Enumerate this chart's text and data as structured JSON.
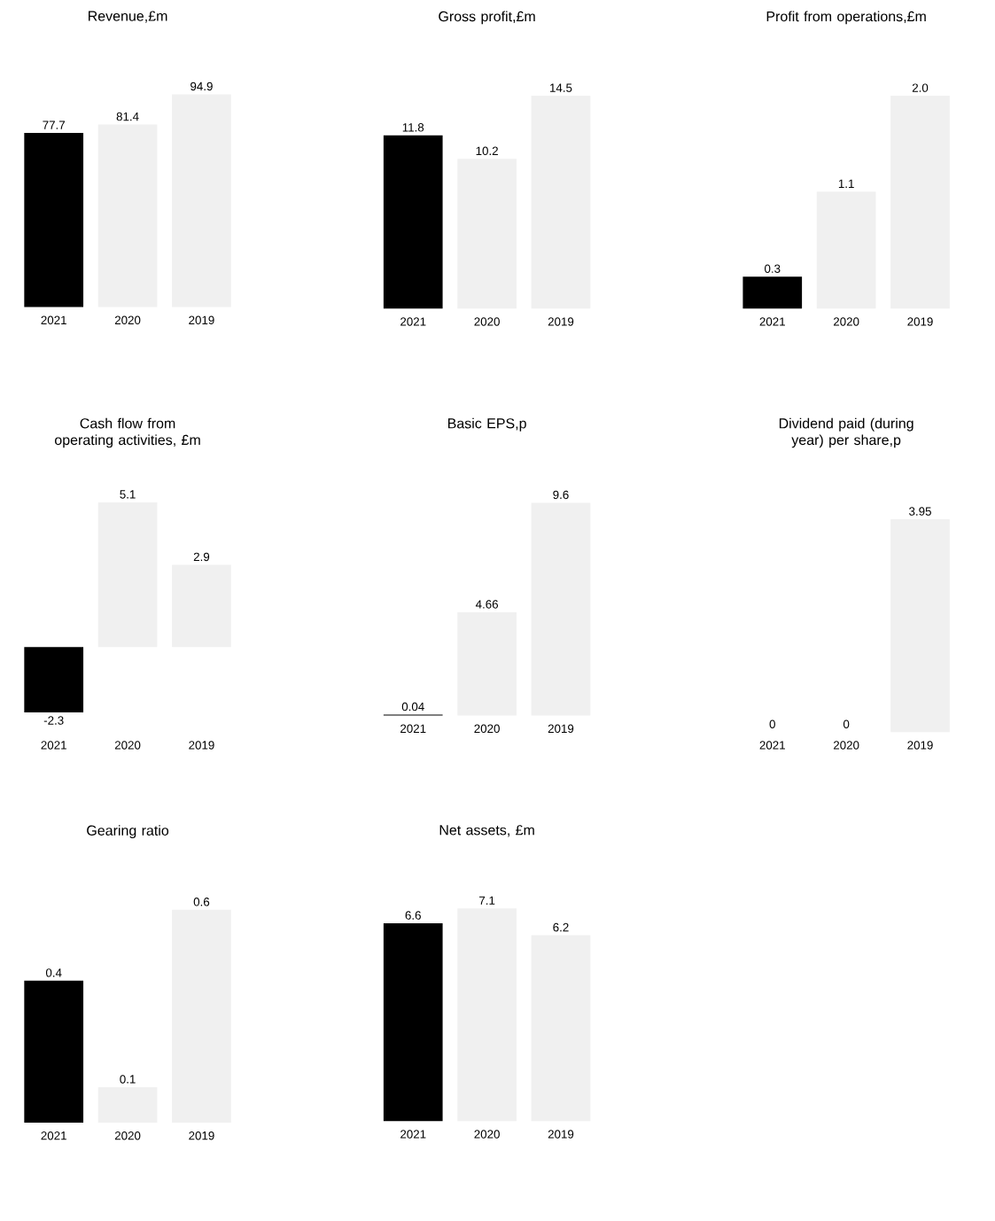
{
  "chart_data": [
    {
      "type": "bar",
      "title": "Revenue,£m",
      "categories": [
        "2021",
        "2020",
        "2019"
      ],
      "values": [
        77.7,
        81.4,
        94.9
      ],
      "colors": [
        "#000000",
        "#f0f0f0",
        "#f0f0f0"
      ],
      "value_labels": [
        "77.7",
        "81.4",
        "94.9"
      ]
    },
    {
      "type": "bar",
      "title": "Gross profit,£m",
      "categories": [
        "2021",
        "2020",
        "2019"
      ],
      "values": [
        11.8,
        10.2,
        14.5
      ],
      "colors": [
        "#000000",
        "#f0f0f0",
        "#f0f0f0"
      ],
      "value_labels": [
        "11.8",
        "10.2",
        "14.5"
      ]
    },
    {
      "type": "bar",
      "title": "Profit from operations,£m",
      "categories": [
        "2021",
        "2020",
        "2019"
      ],
      "values": [
        0.3,
        1.1,
        2.0
      ],
      "colors": [
        "#000000",
        "#f0f0f0",
        "#f0f0f0"
      ],
      "value_labels": [
        "0.3",
        "1.1",
        "2.0"
      ]
    },
    {
      "type": "bar",
      "title": "Cash flow from operating activities, £m",
      "categories": [
        "2021",
        "2020",
        "2019"
      ],
      "values": [
        -2.3,
        5.1,
        2.9
      ],
      "colors": [
        "#000000",
        "#f0f0f0",
        "#f0f0f0"
      ],
      "value_labels": [
        "-2.3",
        "5.1",
        "2.9"
      ]
    },
    {
      "type": "bar",
      "title": "Basic EPS,p",
      "categories": [
        "2021",
        "2020",
        "2019"
      ],
      "values": [
        0.04,
        4.66,
        9.6
      ],
      "colors": [
        "#000000",
        "#f0f0f0",
        "#f0f0f0"
      ],
      "value_labels": [
        "0.04",
        "4.66",
        "9.6"
      ]
    },
    {
      "type": "bar",
      "title": "Dividend paid (during year) per share,p",
      "categories": [
        "2021",
        "2020",
        "2019"
      ],
      "values": [
        0,
        0,
        3.95
      ],
      "colors": [
        "#000000",
        "#f0f0f0",
        "#f0f0f0"
      ],
      "value_labels": [
        "0",
        "0",
        "3.95"
      ]
    },
    {
      "type": "bar",
      "title": "Gearing ratio",
      "categories": [
        "2021",
        "2020",
        "2019"
      ],
      "values": [
        0.4,
        0.1,
        0.6
      ],
      "colors": [
        "#000000",
        "#f0f0f0",
        "#f0f0f0"
      ],
      "value_labels": [
        "0.4",
        "0.1",
        "0.6"
      ]
    },
    {
      "type": "bar",
      "title": "Net assets, £m",
      "categories": [
        "2021",
        "2020",
        "2019"
      ],
      "values": [
        6.6,
        7.1,
        6.2
      ],
      "colors": [
        "#000000",
        "#f0f0f0",
        "#f0f0f0"
      ],
      "value_labels": [
        "6.6",
        "7.1",
        "6.2"
      ]
    }
  ]
}
